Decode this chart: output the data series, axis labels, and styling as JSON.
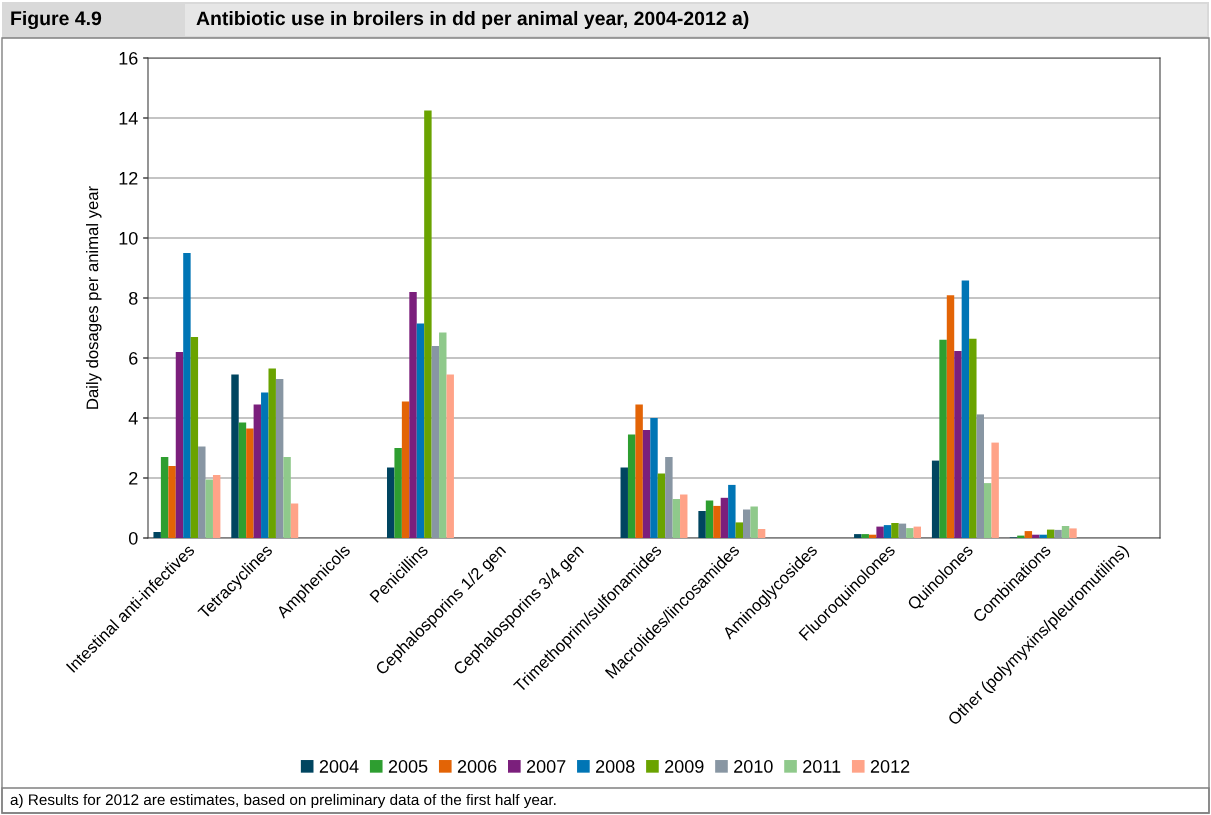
{
  "chart_data": {
    "type": "bar",
    "title": "Antibiotic use in broilers in dd per animal year, 2004-2012 a)",
    "ylabel": "Daily dosages per animal year",
    "annotations": [
      "Figure 4.9",
      "a) Results for 2012 are estimates, based on preliminary data of the first half year."
    ],
    "categories": [
      "Intestinal anti-infectives",
      "Tetracyclines",
      "Amphenicols",
      "Penicillins",
      "Cephalosporins 1/2 gen",
      "Cephalosporins 3/4 gen",
      "Trimethoprim/sulfonamides",
      "Macrolides/lincosamides",
      "Aminoglycosides",
      "Fluoroquinolones",
      "Quinolones",
      "Combinations",
      "Other (polymyxins/pleuromutilins)"
    ],
    "series": [
      {
        "name": "2004",
        "color": "#004560",
        "values": [
          0.2,
          5.45,
          0,
          2.35,
          0,
          0,
          2.35,
          0.9,
          0,
          0.13,
          2.58,
          0.02,
          0
        ]
      },
      {
        "name": "2005",
        "color": "#2e9e30",
        "values": [
          2.7,
          3.85,
          0,
          3.0,
          0,
          0,
          3.45,
          1.25,
          0,
          0.13,
          6.61,
          0.08,
          0
        ]
      },
      {
        "name": "2006",
        "color": "#e36406",
        "values": [
          2.4,
          3.65,
          0,
          4.55,
          0,
          0,
          4.45,
          1.07,
          0,
          0.11,
          8.09,
          0.23,
          0
        ]
      },
      {
        "name": "2007",
        "color": "#7b1f7c",
        "values": [
          6.2,
          4.45,
          0,
          8.2,
          0,
          0,
          3.6,
          1.34,
          0,
          0.38,
          6.23,
          0.11,
          0
        ]
      },
      {
        "name": "2008",
        "color": "#0075b5",
        "values": [
          9.5,
          4.85,
          0,
          7.15,
          0,
          0,
          4.0,
          1.77,
          0,
          0.43,
          8.58,
          0.11,
          0
        ]
      },
      {
        "name": "2009",
        "color": "#6aa300",
        "values": [
          6.7,
          5.65,
          0,
          14.25,
          0,
          0,
          2.15,
          0.52,
          0,
          0.5,
          6.64,
          0.28,
          0
        ]
      },
      {
        "name": "2010",
        "color": "#8896a3",
        "values": [
          3.05,
          5.3,
          0,
          6.4,
          0,
          0,
          2.7,
          0.95,
          0,
          0.48,
          4.12,
          0.27,
          0
        ]
      },
      {
        "name": "2011",
        "color": "#8fc98b",
        "values": [
          1.95,
          2.7,
          0,
          6.85,
          0,
          0,
          1.3,
          1.05,
          0,
          0.33,
          1.83,
          0.4,
          0
        ]
      },
      {
        "name": "2012",
        "color": "#ffa388",
        "values": [
          2.1,
          1.15,
          0,
          5.45,
          0,
          0,
          1.45,
          0.3,
          0,
          0.38,
          3.18,
          0.32,
          0
        ]
      }
    ],
    "ylim": [
      0,
      16
    ],
    "yticks": [
      0,
      2,
      4,
      6,
      8,
      10,
      12,
      14,
      16
    ],
    "grid": "y",
    "legend": "bottom"
  }
}
